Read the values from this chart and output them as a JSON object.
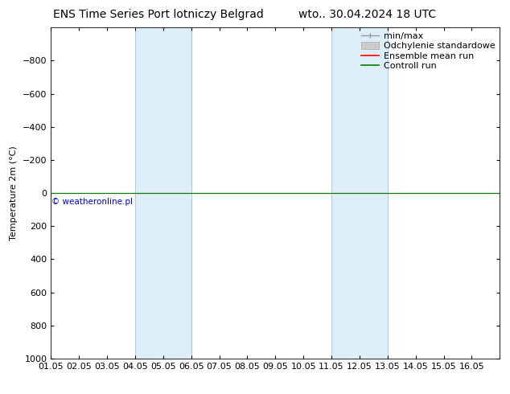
{
  "title_left": "ENS Time Series Port lotniczy Belgrad",
  "title_right": "wto.. 30.04.2024 18 UTC",
  "ylabel": "Temperature 2m (°C)",
  "xlim": [
    0,
    16
  ],
  "ylim": [
    1000,
    -1000
  ],
  "yticks": [
    -800,
    -600,
    -400,
    -200,
    0,
    200,
    400,
    600,
    800,
    1000
  ],
  "xtick_labels": [
    "01.05",
    "02.05",
    "03.05",
    "04.05",
    "05.05",
    "06.05",
    "07.05",
    "08.05",
    "09.05",
    "10.05",
    "11.05",
    "12.05",
    "13.05",
    "14.05",
    "15.05",
    "16.05"
  ],
  "shaded_bands": [
    {
      "x_start": 3.0,
      "x_end": 5.0
    },
    {
      "x_start": 10.0,
      "x_end": 12.0
    }
  ],
  "band_color": "#ddeef8",
  "band_edge_color": "#aaccdd",
  "control_run_color": "#008000",
  "ensemble_mean_color": "#ff0000",
  "watermark_text": "© weatheronline.pl",
  "watermark_color": "#0000cc",
  "background_color": "#ffffff",
  "title_fontsize": 10,
  "axis_fontsize": 8,
  "legend_fontsize": 8
}
